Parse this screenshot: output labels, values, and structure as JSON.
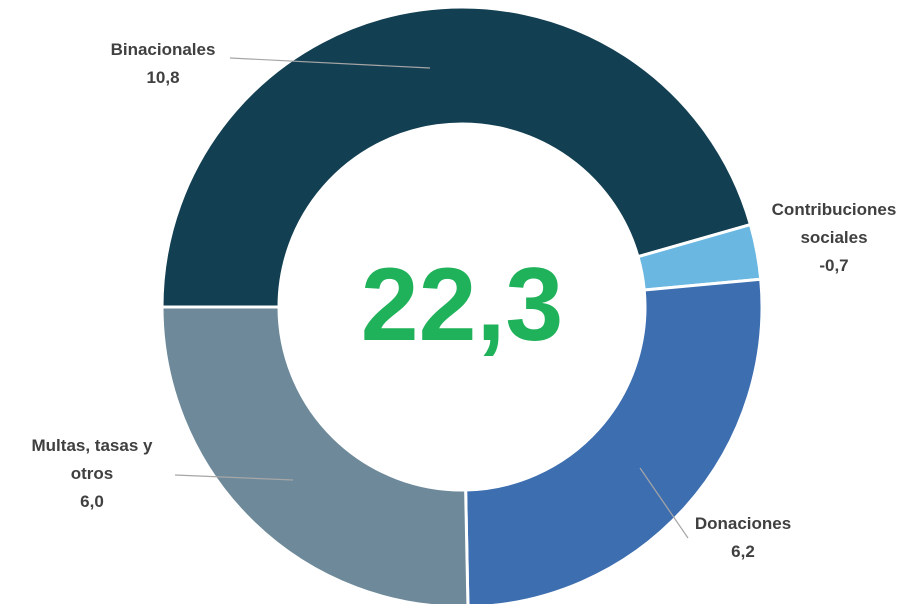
{
  "chart_data": {
    "type": "donut",
    "categories": [
      "Binacionales",
      "Contribuciones sociales",
      "Donaciones",
      "Multas, tasas y otros"
    ],
    "values": [
      10.8,
      -0.7,
      6.2,
      6.0
    ],
    "value_labels": [
      "10,8",
      "-0,7",
      "6,2",
      "6,0"
    ],
    "colors": [
      "#133f52",
      "#6ab8e2",
      "#3d6eb0",
      "#6e8a9a"
    ],
    "center_label": "22,3"
  }
}
